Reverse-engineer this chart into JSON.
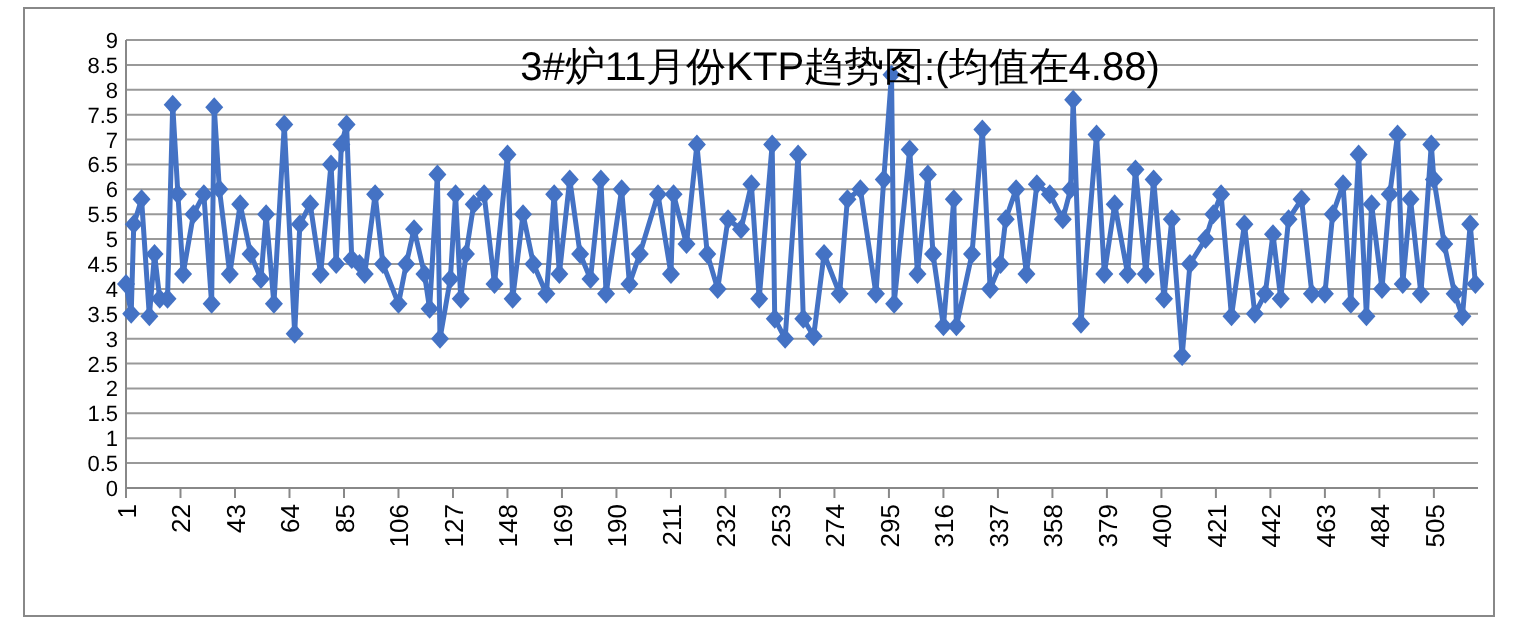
{
  "chart_data": {
    "type": "line",
    "title": "3#炉11月份KTP趋势图:(均值在4.88)",
    "series": [
      {
        "color": "#4472c4",
        "x": [
          1,
          3,
          4,
          7,
          10,
          12,
          14,
          17,
          19,
          21,
          23,
          27,
          31,
          34,
          35,
          37,
          41,
          45,
          49,
          53,
          55,
          58,
          62,
          66,
          68,
          72,
          76,
          80,
          82,
          84,
          86,
          88,
          91,
          93,
          97,
          100,
          106,
          109,
          112,
          116,
          118,
          121,
          122,
          126,
          128,
          130,
          132,
          135,
          139,
          143,
          148,
          150,
          154,
          158,
          163,
          166,
          168,
          172,
          176,
          180,
          184,
          186,
          192,
          195,
          199,
          206,
          211,
          212,
          217,
          221,
          225,
          229,
          233,
          238,
          242,
          245,
          250,
          251,
          255,
          260,
          262,
          266,
          270,
          276,
          279,
          284,
          290,
          293,
          296,
          297,
          303,
          306,
          310,
          312,
          316,
          320,
          321,
          327,
          331,
          334,
          338,
          340,
          344,
          348,
          352,
          357,
          362,
          365,
          366,
          369,
          375,
          378,
          382,
          387,
          390,
          394,
          397,
          401,
          404,
          408,
          411,
          417,
          420,
          423,
          427,
          432,
          436,
          440,
          443,
          446,
          449,
          454,
          458,
          463,
          466,
          470,
          473,
          476,
          479,
          481,
          485,
          488,
          491,
          493,
          496,
          500,
          504,
          505,
          509,
          513,
          516,
          519,
          521
        ],
        "values": [
          4.1,
          3.5,
          5.3,
          5.8,
          3.45,
          4.7,
          3.8,
          3.8,
          7.7,
          5.9,
          4.3,
          5.5,
          5.9,
          3.7,
          7.65,
          6.0,
          4.3,
          5.7,
          4.7,
          4.2,
          5.5,
          3.7,
          7.3,
          3.1,
          5.3,
          5.7,
          4.3,
          6.5,
          4.5,
          6.9,
          7.3,
          4.6,
          4.5,
          4.3,
          5.9,
          4.5,
          3.7,
          4.5,
          5.2,
          4.3,
          3.6,
          6.3,
          3.0,
          4.2,
          5.9,
          3.8,
          4.7,
          5.7,
          5.9,
          4.1,
          6.7,
          3.8,
          5.5,
          4.5,
          3.9,
          5.9,
          4.3,
          6.2,
          4.7,
          4.2,
          6.2,
          3.9,
          6.0,
          4.1,
          4.7,
          5.9,
          4.3,
          5.9,
          4.9,
          6.9,
          4.7,
          4.0,
          5.4,
          5.2,
          6.1,
          3.8,
          6.9,
          3.4,
          3.0,
          6.7,
          3.4,
          3.05,
          4.7,
          3.9,
          5.8,
          6.0,
          3.9,
          6.2,
          8.3,
          3.7,
          6.8,
          4.3,
          6.3,
          4.7,
          3.25,
          5.8,
          3.25,
          4.7,
          7.2,
          4.0,
          4.5,
          5.4,
          6.0,
          4.3,
          6.1,
          5.9,
          5.4,
          6.0,
          7.8,
          3.3,
          7.1,
          4.3,
          5.7,
          4.3,
          6.4,
          4.3,
          6.2,
          3.8,
          5.4,
          2.65,
          4.5,
          5.0,
          5.5,
          5.9,
          3.45,
          5.3,
          3.5,
          3.9,
          5.1,
          3.8,
          5.4,
          5.8,
          3.9,
          3.9,
          5.5,
          6.1,
          3.7,
          6.7,
          3.45,
          5.7,
          4.0,
          5.9,
          7.1,
          4.1,
          5.8,
          3.9,
          6.9,
          6.2,
          4.9,
          3.9,
          3.45,
          5.3,
          4.1
        ]
      }
    ],
    "xlim": [
      1,
      522
    ],
    "xticks": [
      1,
      22,
      43,
      64,
      85,
      106,
      127,
      148,
      169,
      190,
      211,
      232,
      253,
      274,
      295,
      316,
      337,
      358,
      379,
      400,
      421,
      442,
      463,
      484,
      505
    ],
    "ylim": [
      0,
      9
    ],
    "yticks": [
      0,
      0.5,
      1,
      1.5,
      2,
      2.5,
      3,
      3.5,
      4,
      4.5,
      5,
      5.5,
      6,
      6.5,
      7,
      7.5,
      8,
      8.5,
      9
    ],
    "grid": "y",
    "marker": "diamond",
    "line_style": "solid"
  }
}
